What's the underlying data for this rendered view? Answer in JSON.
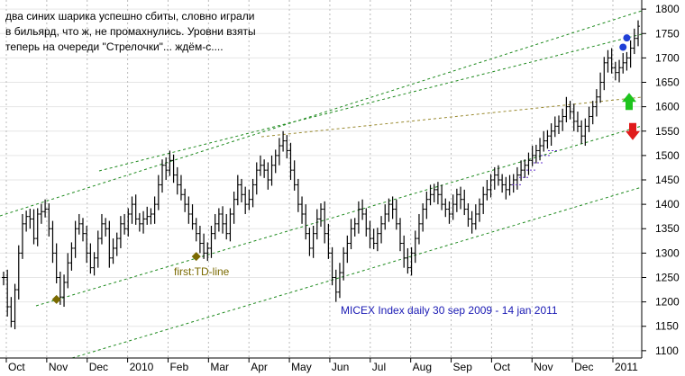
{
  "chart_data": {
    "type": "line",
    "subtype": "ohlc-bars",
    "annotation_text": [
      "два синих шарика успешно сбиты, словно играли",
      "в бильярд, что ж, не промахнулись. Уровни взяты",
      "теперь на очереди \"Стрелочки\"... ждём-с...."
    ],
    "caption": "MICEX Index daily 30 sep 2009 - 14 jan 2011",
    "td_label": "first:TD-line",
    "x_ticks": [
      "Oct",
      "Nov",
      "Dec",
      "2010",
      "Feb",
      "Mar",
      "Apr",
      "May",
      "Jun",
      "Jul",
      "Aug",
      "Sep",
      "Oct",
      "Nov",
      "Dec",
      "2011"
    ],
    "y_ticks": [
      1100,
      1150,
      1200,
      1250,
      1300,
      1350,
      1400,
      1450,
      1500,
      1550,
      1600,
      1650,
      1700,
      1750,
      1800
    ],
    "ylim": [
      1085,
      1815
    ],
    "grid": true,
    "series": [
      {
        "values": [
          1250,
          1190,
          1160,
          1225,
          1300,
          1360,
          1375,
          1370,
          1330,
          1380,
          1385,
          1390,
          1350,
          1300,
          1250,
          1210,
          1240,
          1280,
          1310,
          1350,
          1360,
          1340,
          1300,
          1270,
          1290,
          1330,
          1360,
          1350,
          1290,
          1310,
          1330,
          1360,
          1350,
          1380,
          1400,
          1370,
          1360,
          1370,
          1375,
          1380,
          1400,
          1440,
          1480,
          1470,
          1490,
          1460,
          1440,
          1420,
          1400,
          1380,
          1360,
          1340,
          1320,
          1300,
          1310,
          1340,
          1360,
          1380,
          1360,
          1340,
          1380,
          1410,
          1440,
          1420,
          1400,
          1410,
          1440,
          1470,
          1480,
          1470,
          1450,
          1480,
          1500,
          1520,
          1530,
          1510,
          1470,
          1440,
          1400,
          1380,
          1340,
          1310,
          1340,
          1370,
          1390,
          1340,
          1300,
          1250,
          1220,
          1260,
          1300,
          1320,
          1350,
          1360,
          1390,
          1380,
          1350,
          1330,
          1320,
          1340,
          1360,
          1380,
          1400,
          1390,
          1360,
          1320,
          1290,
          1270,
          1300,
          1330,
          1360,
          1390,
          1410,
          1420,
          1430,
          1420,
          1400,
          1390,
          1380,
          1400,
          1420,
          1410,
          1390,
          1370,
          1360,
          1380,
          1400,
          1420,
          1430,
          1450,
          1460,
          1450,
          1440,
          1430,
          1440,
          1450,
          1460,
          1470,
          1480,
          1490,
          1500,
          1510,
          1520,
          1530,
          1540,
          1550,
          1560,
          1570,
          1580,
          1600,
          1590,
          1570,
          1560,
          1540,
          1560,
          1580,
          1600,
          1620,
          1650,
          1690,
          1700,
          1680,
          1670,
          1680,
          1690,
          1700,
          1720,
          1740,
          1765
        ]
      }
    ],
    "markers": [
      {
        "type": "diamond",
        "color": "#7a6a00",
        "x": 14,
        "value": 1205
      },
      {
        "type": "diamond",
        "color": "#7a6a00",
        "x": 51,
        "value": 1293
      },
      {
        "type": "dot",
        "color": "#1f3fd6",
        "x": 164,
        "value": 1722
      },
      {
        "type": "dot",
        "color": "#1f3fd6",
        "x": 165,
        "value": 1741
      },
      {
        "type": "arrow-up",
        "color": "#1ec41e",
        "value": 1610
      },
      {
        "type": "arrow-down",
        "color": "#e01b1b",
        "value": 1550
      }
    ]
  }
}
